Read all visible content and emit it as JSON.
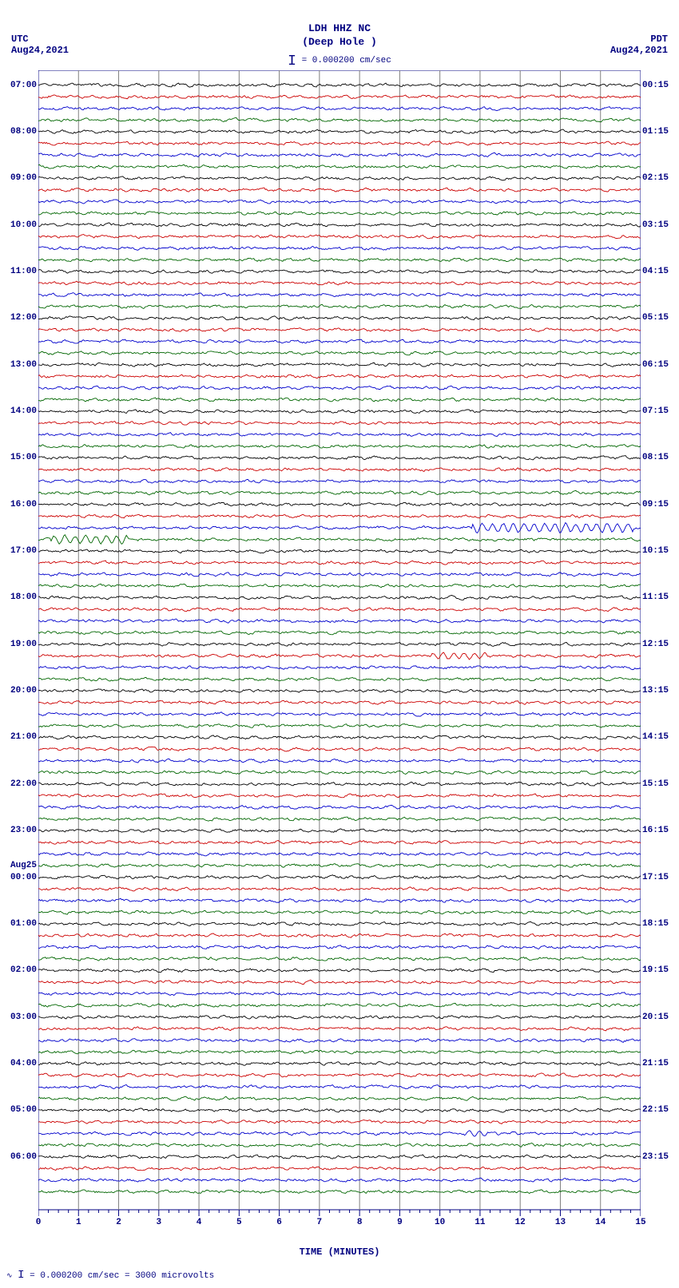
{
  "title_line1": "LDH HHZ NC",
  "title_line2": "(Deep Hole )",
  "scale_text": "= 0.000200 cm/sec",
  "tz_left_label": "UTC",
  "tz_left_date": "Aug24,2021",
  "tz_right_label": "PDT",
  "tz_right_date": "Aug24,2021",
  "x_axis_title": "TIME (MINUTES)",
  "footer_text": "= 0.000200 cm/sec =   3000 microvolts",
  "plot": {
    "n_traces": 96,
    "trace_colors": [
      "#000000",
      "#cc0000",
      "#0000cc",
      "#006600"
    ],
    "grid_color": "#808080",
    "background": "#ffffff",
    "x_min": 0,
    "x_max": 15,
    "x_tick_step": 1,
    "trace_amplitude": 2.8,
    "trace_spacing": 14.6,
    "events": [
      {
        "trace": 39,
        "x_start": 0.3,
        "x_end": 2.2,
        "amp": 5.5
      },
      {
        "trace": 38,
        "x_start": 10.8,
        "x_end": 14.8,
        "amp": 6.2
      },
      {
        "trace": 49,
        "x_start": 9.8,
        "x_end": 11.2,
        "amp": 4.5
      },
      {
        "trace": 90,
        "x_start": 10.6,
        "x_end": 11.2,
        "amp": 4.0
      }
    ]
  },
  "y_left_labels": [
    {
      "text": "07:00",
      "row": 0
    },
    {
      "text": "08:00",
      "row": 4
    },
    {
      "text": "09:00",
      "row": 8
    },
    {
      "text": "10:00",
      "row": 12
    },
    {
      "text": "11:00",
      "row": 16
    },
    {
      "text": "12:00",
      "row": 20
    },
    {
      "text": "13:00",
      "row": 24
    },
    {
      "text": "14:00",
      "row": 28
    },
    {
      "text": "15:00",
      "row": 32
    },
    {
      "text": "16:00",
      "row": 36
    },
    {
      "text": "17:00",
      "row": 40
    },
    {
      "text": "18:00",
      "row": 44
    },
    {
      "text": "19:00",
      "row": 48
    },
    {
      "text": "20:00",
      "row": 52
    },
    {
      "text": "21:00",
      "row": 56
    },
    {
      "text": "22:00",
      "row": 60
    },
    {
      "text": "23:00",
      "row": 64
    },
    {
      "text": "Aug25",
      "row": 67
    },
    {
      "text": "00:00",
      "row": 68
    },
    {
      "text": "01:00",
      "row": 72
    },
    {
      "text": "02:00",
      "row": 76
    },
    {
      "text": "03:00",
      "row": 80
    },
    {
      "text": "04:00",
      "row": 84
    },
    {
      "text": "05:00",
      "row": 88
    },
    {
      "text": "06:00",
      "row": 92
    }
  ],
  "y_right_labels": [
    {
      "text": "00:15",
      "row": 0
    },
    {
      "text": "01:15",
      "row": 4
    },
    {
      "text": "02:15",
      "row": 8
    },
    {
      "text": "03:15",
      "row": 12
    },
    {
      "text": "04:15",
      "row": 16
    },
    {
      "text": "05:15",
      "row": 20
    },
    {
      "text": "06:15",
      "row": 24
    },
    {
      "text": "07:15",
      "row": 28
    },
    {
      "text": "08:15",
      "row": 32
    },
    {
      "text": "09:15",
      "row": 36
    },
    {
      "text": "10:15",
      "row": 40
    },
    {
      "text": "11:15",
      "row": 44
    },
    {
      "text": "12:15",
      "row": 48
    },
    {
      "text": "13:15",
      "row": 52
    },
    {
      "text": "14:15",
      "row": 56
    },
    {
      "text": "15:15",
      "row": 60
    },
    {
      "text": "16:15",
      "row": 64
    },
    {
      "text": "17:15",
      "row": 68
    },
    {
      "text": "18:15",
      "row": 72
    },
    {
      "text": "19:15",
      "row": 76
    },
    {
      "text": "20:15",
      "row": 80
    },
    {
      "text": "21:15",
      "row": 84
    },
    {
      "text": "22:15",
      "row": 88
    },
    {
      "text": "23:15",
      "row": 92
    }
  ],
  "x_labels": [
    "0",
    "1",
    "2",
    "3",
    "4",
    "5",
    "6",
    "7",
    "8",
    "9",
    "10",
    "11",
    "12",
    "13",
    "14",
    "15"
  ]
}
